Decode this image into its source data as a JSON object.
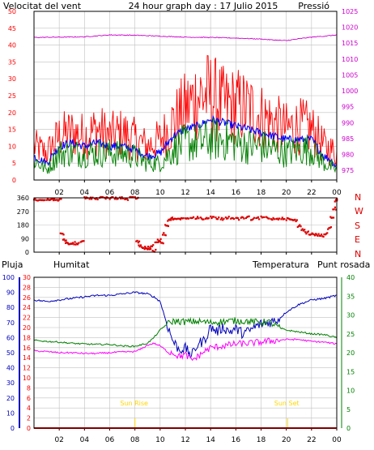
{
  "header": {
    "left_title": "Velocitat del vent",
    "center_title": "24 hour graph day : 17 Julio 2015",
    "right_title": "Pressió"
  },
  "colors": {
    "frame": "#000000",
    "grid": "#c0c0c0",
    "gust": "#ff0000",
    "avg_wind": "#0000ff",
    "wind_green": "#008000",
    "pressure": "#cc00cc",
    "direction": "#dd0000",
    "humidity": "#0000bb",
    "temperature": "#008000",
    "dewpoint": "#ff00ff",
    "rain": "#ff0000",
    "sun_marker": "#ffd700",
    "left_title": "#cc0000",
    "right_title": "#cc00cc"
  },
  "x_ticks": [
    "02",
    "04",
    "06",
    "08",
    "10",
    "12",
    "14",
    "16",
    "18",
    "20",
    "22",
    "00"
  ],
  "x_range_hours": [
    0,
    24
  ],
  "chart_data": [
    {
      "type": "line",
      "panel": "wind-pressure",
      "left_axis": {
        "label": "Velocitat del vent",
        "ylim": [
          0,
          50
        ],
        "ticks": [
          0,
          5,
          10,
          15,
          20,
          25,
          30,
          35,
          40,
          45,
          50
        ]
      },
      "right_axis": {
        "label": "Pressió",
        "ylim": [
          972,
          1025
        ],
        "ticks": [
          975,
          980,
          985,
          990,
          995,
          1000,
          1005,
          1010,
          1015,
          1020,
          1025
        ]
      },
      "series": [
        {
          "name": "",
          "axis": "left",
          "color": "gust",
          "x": [
            0,
            1,
            2,
            3,
            4,
            5,
            6,
            7,
            8,
            9,
            10,
            11,
            12,
            13,
            14,
            15,
            16,
            17,
            18,
            19,
            20,
            21,
            22,
            23,
            23.5,
            24
          ],
          "y": [
            10,
            8,
            13,
            14,
            13,
            15,
            13,
            14,
            12,
            10,
            12,
            17,
            21,
            25,
            25,
            22,
            22,
            21,
            19,
            17,
            15,
            16,
            15,
            10,
            9,
            8
          ]
        },
        {
          "name": "",
          "axis": "left",
          "color": "avg_wind",
          "x": [
            0,
            1,
            2,
            3,
            4,
            5,
            6,
            7,
            8,
            9,
            10,
            11,
            12,
            13,
            14,
            15,
            16,
            17,
            18,
            19,
            20,
            21,
            22,
            23,
            23.5,
            24
          ],
          "y": [
            7,
            5,
            10,
            11,
            10,
            11,
            10,
            10,
            9,
            7,
            8,
            13,
            15,
            16,
            18,
            17,
            16,
            15,
            14,
            13,
            12,
            12,
            12,
            7,
            6,
            4
          ]
        },
        {
          "name": "",
          "axis": "left",
          "color": "wind_green",
          "x": [
            0,
            1,
            2,
            3,
            4,
            5,
            6,
            7,
            8,
            9,
            10,
            11,
            12,
            13,
            14,
            15,
            16,
            17,
            18,
            19,
            20,
            21,
            22,
            23,
            23.5,
            24
          ],
          "y": [
            6,
            3,
            8,
            8,
            8,
            8,
            8,
            8,
            7,
            5,
            5,
            9,
            11,
            11,
            12,
            12,
            11,
            10,
            10,
            9,
            8,
            9,
            9,
            5,
            4,
            3
          ]
        },
        {
          "name": "",
          "axis": "right",
          "color": "pressure",
          "x": [
            0,
            2,
            4,
            6,
            8,
            10,
            12,
            14,
            16,
            18,
            19,
            20,
            21,
            22,
            23,
            24
          ],
          "y": [
            1016.8,
            1016.9,
            1017.0,
            1017.6,
            1017.5,
            1017.2,
            1016.9,
            1016.8,
            1016.6,
            1016.3,
            1016.0,
            1015.8,
            1016.4,
            1016.9,
            1017.2,
            1017.6
          ]
        }
      ]
    },
    {
      "type": "scatter",
      "panel": "wind-direction",
      "ylim": [
        0,
        360
      ],
      "y_ticks": [
        0,
        90,
        180,
        270,
        360
      ],
      "right_labels": [
        "N",
        "W",
        "S",
        "E",
        "N"
      ],
      "series": [
        {
          "name": "",
          "color": "direction",
          "x": [
            0.0,
            0.3,
            0.6,
            1.0,
            1.3,
            1.6,
            1.9,
            2.1,
            2.3,
            2.5,
            2.7,
            3.0,
            3.3,
            3.7,
            4.0,
            4.4,
            4.8,
            5.2,
            5.6,
            6.0,
            6.4,
            6.8,
            7.2,
            7.6,
            8.0,
            8.1,
            8.3,
            8.6,
            8.8,
            9.0,
            9.2,
            9.4,
            9.6,
            9.8,
            10.0,
            10.2,
            10.4,
            10.6,
            10.8,
            11.0,
            11.3,
            11.6,
            12.0,
            12.4,
            12.8,
            13.2,
            13.6,
            14.0,
            14.4,
            14.8,
            15.2,
            15.6,
            16.0,
            16.4,
            16.8,
            17.2,
            17.6,
            18.0,
            18.4,
            18.8,
            19.2,
            19.6,
            20.0,
            20.3,
            20.6,
            20.9,
            21.2,
            21.5,
            21.8,
            22.1,
            22.4,
            22.7,
            23.0,
            23.3,
            23.5,
            23.7,
            23.85,
            24.0
          ],
          "y": [
            350,
            350,
            345,
            348,
            350,
            352,
            345,
            120,
            80,
            60,
            55,
            60,
            55,
            70,
            360,
            360,
            355,
            360,
            360,
            358,
            360,
            360,
            350,
            365,
            360,
            70,
            40,
            25,
            30,
            20,
            40,
            10,
            60,
            80,
            65,
            120,
            180,
            210,
            225,
            220,
            225,
            220,
            230,
            225,
            228,
            225,
            222,
            230,
            225,
            220,
            230,
            226,
            222,
            225,
            230,
            220,
            225,
            230,
            228,
            222,
            224,
            226,
            220,
            215,
            210,
            175,
            150,
            130,
            120,
            115,
            115,
            110,
            120,
            160,
            230,
            290,
            340,
            350
          ]
        }
      ]
    },
    {
      "type": "line",
      "panel": "humidity-temperature",
      "left_axes": [
        {
          "label": "Pluja",
          "ylim": [
            0,
            30
          ],
          "ticks": [
            0,
            2,
            4,
            6,
            8,
            10,
            12,
            14,
            16,
            18,
            20,
            22,
            24,
            26,
            28,
            30
          ]
        },
        {
          "label": "Humitat",
          "ylim": [
            0,
            100
          ],
          "ticks": [
            0,
            10,
            20,
            30,
            40,
            50,
            60,
            70,
            80,
            90,
            100
          ]
        }
      ],
      "right_axes": [
        {
          "label": "Temperatura",
          "ylim": [
            0,
            40
          ],
          "ticks": [
            0,
            5,
            10,
            15,
            20,
            25,
            30,
            35,
            40
          ]
        },
        {
          "label": "Punt rosada",
          "ylim": [
            0,
            40
          ]
        }
      ],
      "annotations": [
        {
          "text": "Sun Rise",
          "x": 8.0
        },
        {
          "text": "Sun Set",
          "x": 20.1
        }
      ],
      "series": [
        {
          "name": "Humitat",
          "axis": "humidity",
          "color": "humidity",
          "x": [
            0,
            1,
            2,
            3,
            4,
            5,
            6,
            7,
            8,
            9,
            9.5,
            10,
            10.5,
            11,
            11.5,
            12,
            12.5,
            13,
            13.5,
            14,
            14.5,
            15,
            15.5,
            16,
            16.5,
            17,
            17.5,
            18,
            18.5,
            19,
            19.5,
            20,
            21,
            22,
            23,
            24
          ],
          "y": [
            85,
            84,
            85,
            86,
            87,
            88,
            88,
            89,
            90,
            89,
            87,
            84,
            70,
            58,
            52,
            53,
            48,
            56,
            58,
            67,
            64,
            67,
            64,
            66,
            63,
            64,
            67,
            69,
            70,
            71,
            73,
            77,
            82,
            85,
            86,
            88
          ]
        },
        {
          "name": "Temperatura",
          "axis": "temperature",
          "color": "temperature",
          "x": [
            0,
            1,
            2,
            3,
            4,
            5,
            6,
            7,
            8,
            9,
            9.5,
            10,
            10.5,
            11,
            11.5,
            12,
            13,
            14,
            15,
            16,
            17,
            18,
            18.5,
            19,
            19.5,
            20,
            21,
            22,
            23,
            24
          ],
          "y": [
            23.3,
            23.0,
            22.8,
            22.5,
            22.3,
            22.2,
            22.2,
            21.8,
            21.7,
            22.5,
            24.0,
            26.0,
            27.5,
            28.3,
            28.3,
            28.2,
            28.3,
            28.0,
            28.3,
            28.5,
            28.3,
            28.0,
            28.3,
            27.5,
            26.5,
            26.0,
            25.5,
            25.0,
            24.8,
            24.0
          ]
        },
        {
          "name": "Punt rosada",
          "axis": "temperature",
          "color": "dewpoint",
          "x": [
            0,
            1,
            2,
            3,
            4,
            5,
            6,
            7,
            8,
            8.5,
            9,
            9.5,
            10,
            10.5,
            11,
            11.5,
            12,
            12.5,
            13,
            13.5,
            14,
            15,
            16,
            17,
            18,
            19,
            20,
            21,
            22,
            23,
            24
          ],
          "y": [
            20.5,
            20.3,
            20.0,
            20.0,
            19.8,
            19.8,
            20.0,
            20.2,
            20.3,
            21.0,
            22.0,
            22.5,
            21.8,
            20.5,
            20.0,
            19.0,
            19.5,
            18.0,
            19.0,
            20.3,
            21.3,
            21.8,
            22.3,
            22.5,
            22.8,
            23.2,
            23.5,
            23.5,
            23.0,
            22.8,
            22.3
          ]
        },
        {
          "name": "Pluja",
          "axis": "rain",
          "color": "rain",
          "x": [
            0,
            24
          ],
          "y": [
            0,
            0
          ]
        }
      ]
    }
  ]
}
